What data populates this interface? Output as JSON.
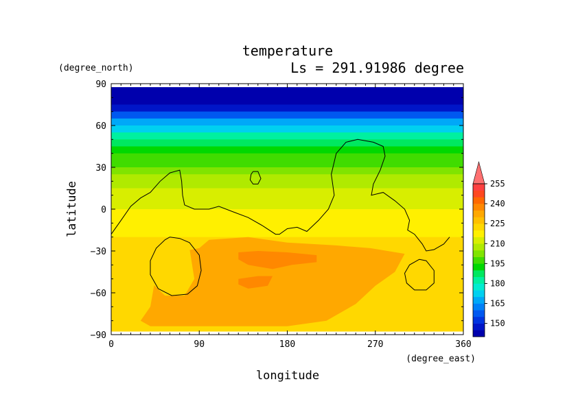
{
  "chart_data": {
    "type": "heatmap",
    "title": "temperature",
    "subtitle": "Ls = 291.91986 degree",
    "xlabel": "longitude",
    "ylabel": "latitude",
    "x_units": "(degree_east)",
    "y_units": "(degree_north)",
    "xlim": [
      0,
      360
    ],
    "ylim": [
      -90,
      90
    ],
    "x_ticks": [
      0,
      90,
      180,
      270,
      360
    ],
    "y_ticks": [
      90,
      60,
      30,
      0,
      -30,
      -60,
      -90
    ],
    "x_tick_labels": [
      "0",
      "90",
      "180",
      "270",
      "360"
    ],
    "y_tick_labels": [
      "90",
      "60",
      "30",
      "0",
      "−30",
      "−60",
      "−90"
    ],
    "data_extent": {
      "lon": [
        0,
        360
      ],
      "lat": [
        -87.5,
        87.5
      ]
    },
    "colorbar": {
      "levels": [
        140,
        145,
        150,
        155,
        160,
        165,
        170,
        175,
        180,
        185,
        190,
        195,
        200,
        205,
        210,
        215,
        220,
        225,
        230,
        235,
        240,
        245,
        250,
        255,
        260
      ],
      "tick_labels": [
        "150",
        "165",
        "180",
        "195",
        "210",
        "225",
        "240",
        "255"
      ],
      "colors": [
        "#0000ad",
        "#0016c8",
        "#0034e0",
        "#0058f0",
        "#0080f8",
        "#00a8f8",
        "#00d0f0",
        "#00ecd0",
        "#00f0a0",
        "#00e860",
        "#00d800",
        "#40dc00",
        "#80e400",
        "#b0ea00",
        "#d8ee00",
        "#fff000",
        "#ffd800",
        "#ffc000",
        "#ffa800",
        "#ff8800",
        "#ff6800",
        "#ff4820",
        "#ff4040",
        "#ff7070"
      ],
      "extend": "max"
    },
    "zonal_profile": [
      {
        "lat": 87.5,
        "value": 140
      },
      {
        "lat": 75,
        "value": 143
      },
      {
        "lat": 70,
        "value": 150
      },
      {
        "lat": 65,
        "value": 160
      },
      {
        "lat": 60,
        "value": 170
      },
      {
        "lat": 55,
        "value": 178
      },
      {
        "lat": 50,
        "value": 185
      },
      {
        "lat": 45,
        "value": 190
      },
      {
        "lat": 40,
        "value": 194
      },
      {
        "lat": 35,
        "value": 198
      },
      {
        "lat": 30,
        "value": 201
      },
      {
        "lat": 25,
        "value": 204
      },
      {
        "lat": 20,
        "value": 207
      },
      {
        "lat": 15,
        "value": 209
      },
      {
        "lat": 10,
        "value": 211
      },
      {
        "lat": 5,
        "value": 212
      },
      {
        "lat": 0,
        "value": 214
      },
      {
        "lat": -5,
        "value": 216
      },
      {
        "lat": -10,
        "value": 218
      },
      {
        "lat": -15,
        "value": 219
      },
      {
        "lat": -20,
        "value": 220
      },
      {
        "lat": -25,
        "value": 222
      },
      {
        "lat": -30,
        "value": 223
      },
      {
        "lat": -40,
        "value": 224
      },
      {
        "lat": -50,
        "value": 225
      },
      {
        "lat": -60,
        "value": 224
      },
      {
        "lat": -70,
        "value": 223
      },
      {
        "lat": -80,
        "value": 224
      },
      {
        "lat": -87.5,
        "value": 225
      }
    ],
    "regions": [
      {
        "value": 232,
        "polygon": [
          [
            100,
            -22
          ],
          [
            140,
            -20
          ],
          [
            180,
            -24
          ],
          [
            230,
            -26
          ],
          [
            265,
            -28
          ],
          [
            300,
            -32
          ],
          [
            290,
            -45
          ],
          [
            270,
            -55
          ],
          [
            250,
            -68
          ],
          [
            220,
            -80
          ],
          [
            180,
            -84
          ],
          [
            130,
            -84
          ],
          [
            80,
            -84
          ],
          [
            40,
            -84
          ],
          [
            30,
            -80
          ],
          [
            40,
            -70
          ],
          [
            45,
            -50
          ],
          [
            40,
            -34
          ],
          [
            60,
            -32
          ],
          [
            90,
            -28
          ]
        ]
      },
      {
        "value": 237,
        "polygon": [
          [
            130,
            -31
          ],
          [
            150,
            -30
          ],
          [
            180,
            -31
          ],
          [
            210,
            -33
          ],
          [
            210,
            -38
          ],
          [
            185,
            -40
          ],
          [
            165,
            -43
          ],
          [
            140,
            -40
          ],
          [
            130,
            -36
          ]
        ]
      },
      {
        "value": 237,
        "polygon": [
          [
            130,
            -50
          ],
          [
            150,
            -48
          ],
          [
            165,
            -48
          ],
          [
            160,
            -55
          ],
          [
            140,
            -57
          ],
          [
            130,
            -54
          ]
        ]
      },
      {
        "value": 224,
        "polygon": [
          [
            40,
            -30
          ],
          [
            80,
            -28
          ],
          [
            85,
            -50
          ],
          [
            75,
            -62
          ],
          [
            55,
            -62
          ],
          [
            40,
            -52
          ]
        ]
      },
      {
        "value": 224,
        "polygon": [
          [
            300,
            -40
          ],
          [
            320,
            -37
          ],
          [
            330,
            -45
          ],
          [
            322,
            -55
          ],
          [
            305,
            -58
          ],
          [
            296,
            -50
          ]
        ]
      }
    ],
    "contours": [
      [
        [
          0,
          -18
        ],
        [
          10,
          -8
        ],
        [
          20,
          2
        ],
        [
          30,
          8
        ],
        [
          40,
          12
        ],
        [
          50,
          20
        ],
        [
          60,
          26
        ],
        [
          70,
          28
        ],
        [
          72,
          20
        ],
        [
          73,
          10
        ],
        [
          75,
          3
        ],
        [
          85,
          0
        ],
        [
          100,
          0
        ],
        [
          110,
          2
        ],
        [
          125,
          -2
        ],
        [
          140,
          -6
        ],
        [
          155,
          -12
        ],
        [
          168,
          -18
        ],
        [
          172,
          -18
        ],
        [
          180,
          -14
        ],
        [
          190,
          -13
        ],
        [
          200,
          -16
        ],
        [
          212,
          -8
        ],
        [
          222,
          0
        ],
        [
          228,
          10
        ],
        [
          225,
          25
        ],
        [
          230,
          40
        ],
        [
          240,
          48
        ],
        [
          252,
          50
        ],
        [
          268,
          48
        ],
        [
          278,
          45
        ],
        [
          280,
          38
        ],
        [
          275,
          28
        ],
        [
          268,
          18
        ],
        [
          266,
          10
        ],
        [
          278,
          12
        ],
        [
          290,
          6
        ],
        [
          300,
          0
        ],
        [
          305,
          -8
        ],
        [
          303,
          -15
        ],
        [
          310,
          -18
        ],
        [
          318,
          -25
        ],
        [
          322,
          -30
        ],
        [
          330,
          -29
        ],
        [
          340,
          -25
        ],
        [
          346,
          -20
        ]
      ],
      [
        [
          60,
          -20
        ],
        [
          70,
          -21
        ],
        [
          80,
          -24
        ],
        [
          90,
          -33
        ],
        [
          92,
          -44
        ],
        [
          88,
          -55
        ],
        [
          78,
          -61
        ],
        [
          62,
          -62
        ],
        [
          48,
          -57
        ],
        [
          40,
          -47
        ],
        [
          40,
          -37
        ],
        [
          46,
          -28
        ],
        [
          55,
          -22
        ],
        [
          60,
          -20
        ]
      ],
      [
        [
          145,
          27
        ],
        [
          150,
          27
        ],
        [
          153,
          22
        ],
        [
          150,
          18
        ],
        [
          145,
          18
        ],
        [
          142,
          21
        ],
        [
          143,
          25
        ],
        [
          145,
          27
        ]
      ],
      [
        [
          315,
          -36
        ],
        [
          322,
          -37
        ],
        [
          330,
          -44
        ],
        [
          330,
          -53
        ],
        [
          322,
          -58
        ],
        [
          310,
          -58
        ],
        [
          302,
          -53
        ],
        [
          300,
          -46
        ],
        [
          305,
          -40
        ],
        [
          315,
          -36
        ]
      ]
    ]
  }
}
